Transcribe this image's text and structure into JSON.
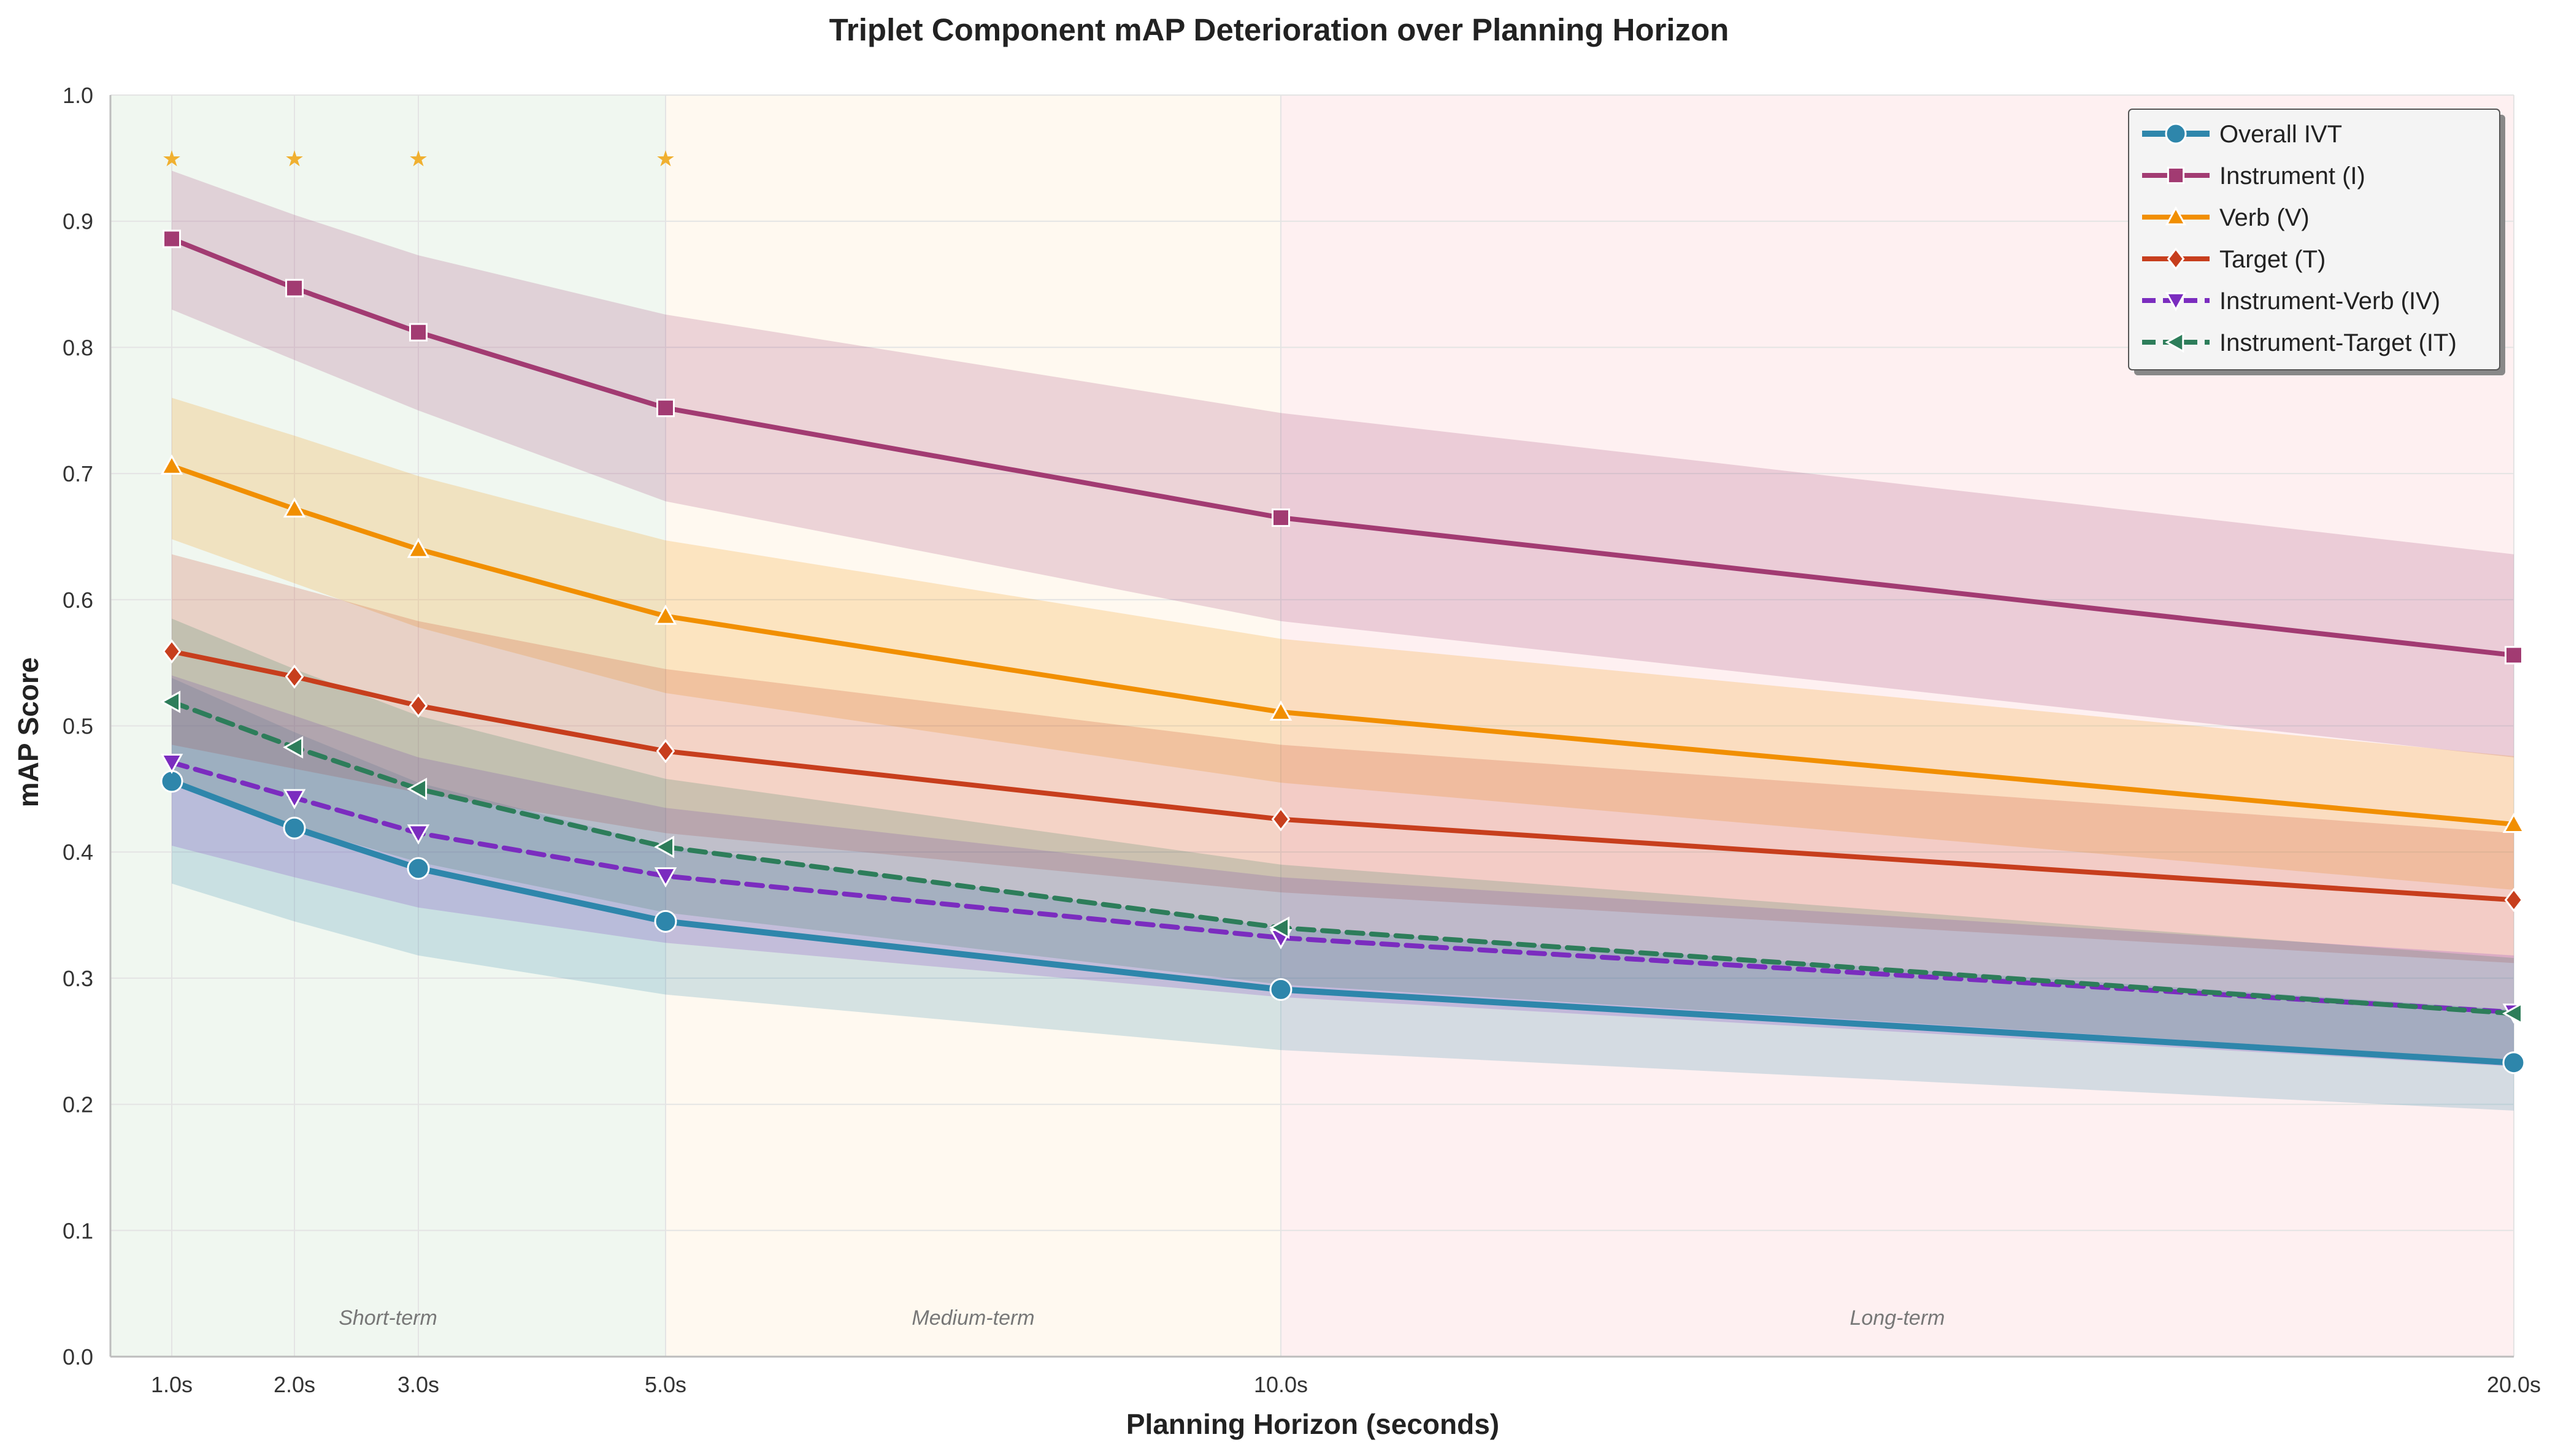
{
  "chart_data": {
    "type": "line",
    "title": "Triplet Component mAP Deterioration over Planning Horizon",
    "xlabel": "Planning Horizon (seconds)",
    "ylabel": "mAP Score",
    "x": [
      1,
      2,
      3,
      5,
      10,
      20
    ],
    "x_tick_labels": [
      "1.0s",
      "2.0s",
      "3.0s",
      "5.0s",
      "10.0s",
      "20.0s"
    ],
    "xlim": [
      0.5,
      20
    ],
    "ylim": [
      0,
      1.0
    ],
    "y_ticks": [
      0.0,
      0.1,
      0.2,
      0.3,
      0.4,
      0.5,
      0.6,
      0.7,
      0.8,
      0.9,
      1.0
    ],
    "y_tick_labels": [
      "0.0",
      "0.1",
      "0.2",
      "0.3",
      "0.4",
      "0.5",
      "0.6",
      "0.7",
      "0.8",
      "0.9",
      "1.0"
    ],
    "grid": true,
    "legend_position": "top-right",
    "regions": [
      {
        "label": "Short-term",
        "from": 0.5,
        "to": 5,
        "color": "#e6f2e6"
      },
      {
        "label": "Medium-term",
        "from": 5,
        "to": 10,
        "color": "#fff5e6"
      },
      {
        "label": "Long-term",
        "from": 10,
        "to": 20,
        "color": "#fde6e8"
      }
    ],
    "significance_markers": {
      "symbol": "★",
      "x": [
        1,
        2,
        3,
        5
      ],
      "y": 0.95,
      "color": "#f0b030"
    },
    "series": [
      {
        "name": "Overall IVT",
        "color": "#2e86ab",
        "marker": "circle",
        "dashed": false,
        "values": [
          0.456,
          0.419,
          0.387,
          0.345,
          0.291,
          0.233
        ],
        "lower": [
          0.375,
          0.345,
          0.318,
          0.287,
          0.243,
          0.195
        ],
        "upper": [
          0.538,
          0.495,
          0.455,
          0.405,
          0.34,
          0.275
        ]
      },
      {
        "name": "Instrument (I)",
        "color": "#a23b72",
        "marker": "square",
        "dashed": false,
        "values": [
          0.886,
          0.847,
          0.812,
          0.752,
          0.665,
          0.556
        ],
        "lower": [
          0.83,
          0.79,
          0.75,
          0.678,
          0.583,
          0.475
        ],
        "upper": [
          0.94,
          0.905,
          0.873,
          0.826,
          0.748,
          0.636
        ]
      },
      {
        "name": "Verb (V)",
        "color": "#f18f01",
        "marker": "triangle-up",
        "dashed": false,
        "values": [
          0.706,
          0.672,
          0.64,
          0.587,
          0.511,
          0.422
        ],
        "lower": [
          0.648,
          0.613,
          0.578,
          0.526,
          0.455,
          0.37
        ],
        "upper": [
          0.76,
          0.73,
          0.698,
          0.647,
          0.569,
          0.476
        ]
      },
      {
        "name": "Target (T)",
        "color": "#c73e1d",
        "marker": "diamond",
        "dashed": false,
        "values": [
          0.559,
          0.539,
          0.516,
          0.48,
          0.426,
          0.362
        ],
        "lower": [
          0.485,
          0.466,
          0.447,
          0.415,
          0.368,
          0.312
        ],
        "upper": [
          0.636,
          0.61,
          0.583,
          0.545,
          0.485,
          0.415
        ]
      },
      {
        "name": "Instrument-Verb (IV)",
        "color": "#7b2cbf",
        "marker": "triangle-down",
        "dashed": true,
        "values": [
          0.471,
          0.443,
          0.415,
          0.381,
          0.332,
          0.273
        ],
        "lower": [
          0.405,
          0.38,
          0.356,
          0.328,
          0.285,
          0.23
        ],
        "upper": [
          0.54,
          0.508,
          0.475,
          0.435,
          0.38,
          0.318
        ]
      },
      {
        "name": "Instrument-Target (IT)",
        "color": "#2d7d5a",
        "marker": "triangle-left",
        "dashed": true,
        "values": [
          0.519,
          0.483,
          0.45,
          0.404,
          0.34,
          0.272
        ],
        "lower": [
          0.453,
          0.42,
          0.392,
          0.352,
          0.295,
          0.235
        ],
        "upper": [
          0.585,
          0.545,
          0.508,
          0.458,
          0.39,
          0.316
        ]
      }
    ]
  }
}
